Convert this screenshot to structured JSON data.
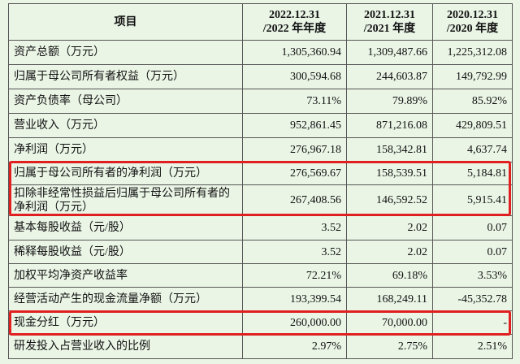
{
  "table": {
    "header": [
      [
        "项目"
      ],
      [
        "2022.12.31",
        "/2022 年年度"
      ],
      [
        "2021.12.31",
        "/2021 年度"
      ],
      [
        "2020.12.31",
        "/2020 年度"
      ]
    ],
    "rows": [
      [
        "资产总额（万元）",
        "1,305,360.94",
        "1,309,487.66",
        "1,225,312.08"
      ],
      [
        "归属于母公司所有者权益（万元）",
        "300,594.68",
        "244,603.87",
        "149,792.99"
      ],
      [
        "资产负债率（母公司）",
        "73.11%",
        "79.89%",
        "85.92%"
      ],
      [
        "营业收入（万元）",
        "952,861.45",
        "871,216.08",
        "429,809.51"
      ],
      [
        "净利润（万元）",
        "276,967.18",
        "158,342.81",
        "4,637.74"
      ],
      [
        "归属于母公司所有者的净利润（万元）",
        "276,569.67",
        "158,539.51",
        "5,184.81"
      ],
      [
        "扣除非经常性损益后归属于母公司所有者的净利润（万元）",
        "267,408.56",
        "146,592.52",
        "5,915.41"
      ],
      [
        "基本每股收益（元/股）",
        "3.52",
        "2.02",
        "0.07"
      ],
      [
        "稀释每股收益（元/股）",
        "3.52",
        "2.02",
        "0.07"
      ],
      [
        "加权平均净资产收益率",
        "72.21%",
        "69.18%",
        "3.53%"
      ],
      [
        "经营活动产生的现金流量净额（万元）",
        "193,399.54",
        "168,249.11",
        "-45,352.78"
      ],
      [
        "现金分红（万元）",
        "260,000.00",
        "70,000.00",
        "-"
      ],
      [
        "研发投入占营业收入的比例",
        "2.97%",
        "2.75%",
        "2.51%"
      ]
    ]
  }
}
